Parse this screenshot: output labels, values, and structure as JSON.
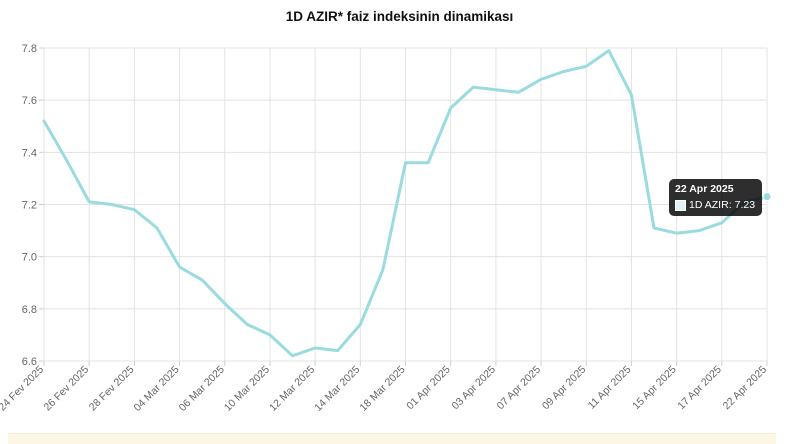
{
  "chart_data": {
    "type": "line",
    "title": "1D AZIR* faiz indeksinin dinamikası",
    "xlabel": "",
    "ylabel": "",
    "ylim": [
      6.6,
      7.8
    ],
    "yticks": [
      "6.6",
      "6.8",
      "7.0",
      "7.2",
      "7.4",
      "7.6",
      "7.8"
    ],
    "x_tick_labels": [
      "24 Fev 2025",
      "26 Fev 2025",
      "28 Fev 2025",
      "04 Mar 2025",
      "06 Mar 2025",
      "10 Mar 2025",
      "12 Mar 2025",
      "14 Mar 2025",
      "18 Mar 2025",
      "01 Apr 2025",
      "03 Apr 2025",
      "07 Apr 2025",
      "09 Apr 2025",
      "11 Apr 2025",
      "15 Apr 2025",
      "17 Apr 2025",
      "22 Apr 2025"
    ],
    "grid": true,
    "line_color": "#9adbe0",
    "series": [
      {
        "name": "1D AZIR",
        "values": [
          7.52,
          7.37,
          7.21,
          7.2,
          7.18,
          7.11,
          6.96,
          6.91,
          6.82,
          6.74,
          6.7,
          6.62,
          6.65,
          6.64,
          6.74,
          6.95,
          7.36,
          7.36,
          7.57,
          7.65,
          7.64,
          7.63,
          7.68,
          7.71,
          7.73,
          7.79,
          7.62,
          7.11,
          7.09,
          7.1,
          7.13,
          7.21,
          7.23
        ]
      }
    ]
  },
  "tooltip": {
    "date": "22 Apr 2025",
    "series_label": "1D AZIR",
    "value": "7.23"
  }
}
